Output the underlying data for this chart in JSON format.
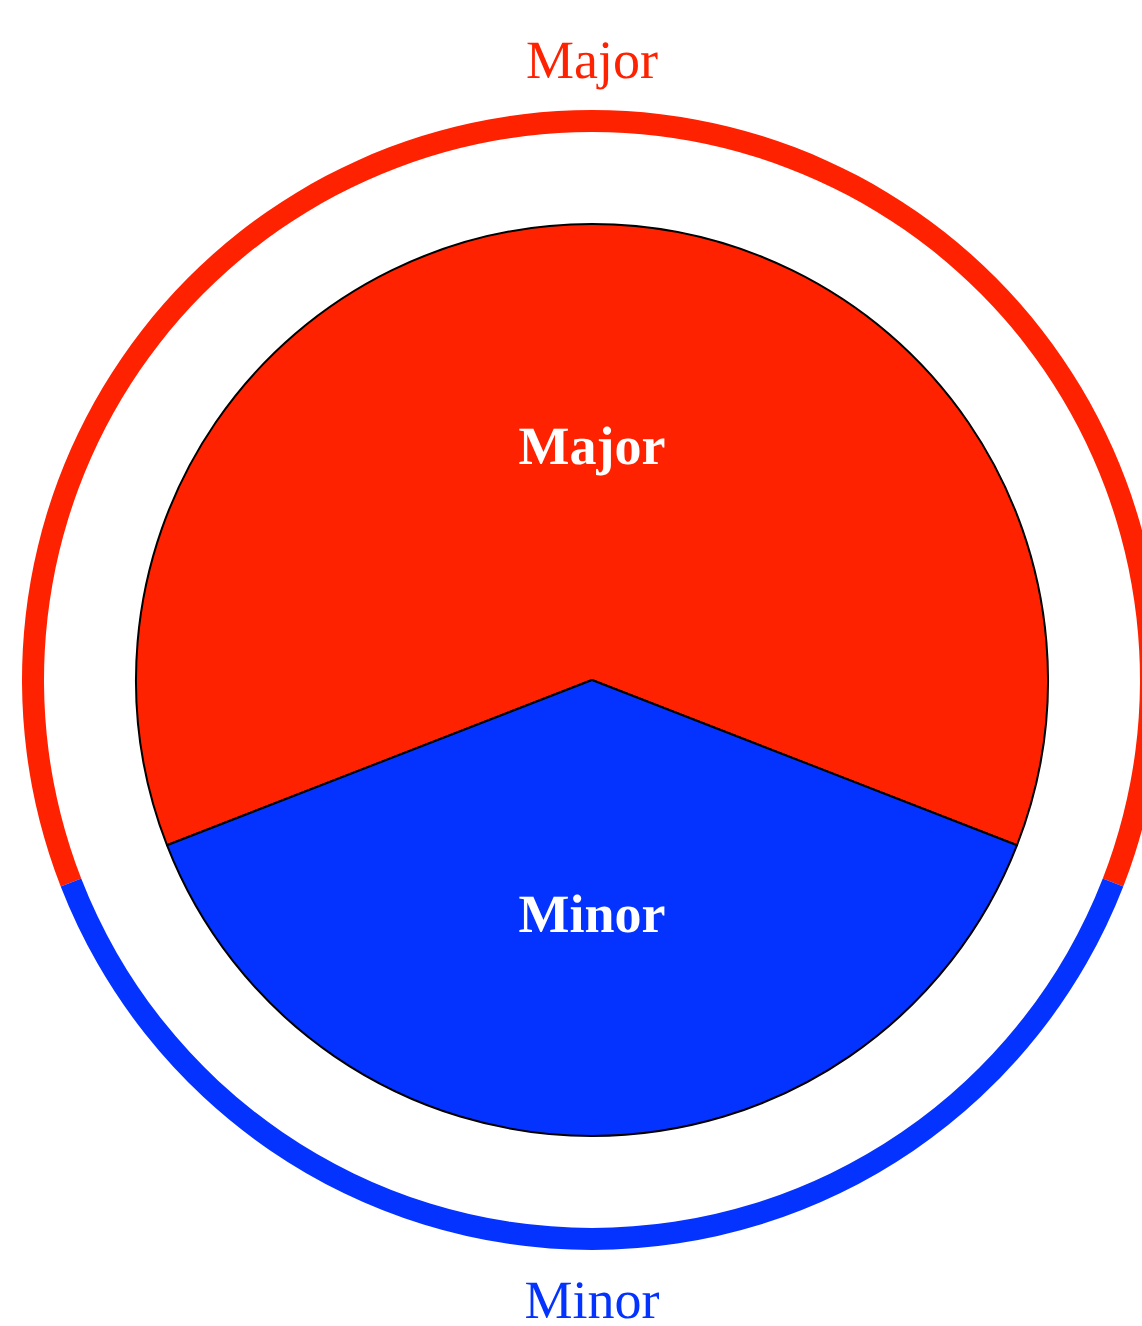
{
  "chart_data": {
    "type": "pie",
    "categories": [
      "Major",
      "Minor"
    ],
    "colors": [
      "#ff2200",
      "#0433ff"
    ],
    "series": [
      {
        "type": "pie",
        "values": [
          61.8,
          38.2
        ]
      },
      {
        "type": "donut",
        "values": [
          61.8,
          38.2
        ]
      }
    ]
  }
}
